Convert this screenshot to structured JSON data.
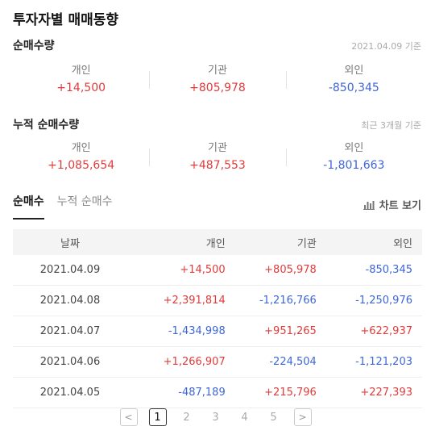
{
  "title": "투자자별 매매동향",
  "net": {
    "title": "순매수량",
    "note": "2021.04.09 기준",
    "stats": [
      {
        "label": "개인",
        "value": "+14,500"
      },
      {
        "label": "기관",
        "value": "+805,978"
      },
      {
        "label": "외인",
        "value": "-850,345"
      }
    ]
  },
  "cumulative": {
    "title": "누적 순매수량",
    "note": "최근 3개월 기준",
    "stats": [
      {
        "label": "개인",
        "value": "+1,085,654"
      },
      {
        "label": "기관",
        "value": "+487,553"
      },
      {
        "label": "외인",
        "value": "-1,801,663"
      }
    ]
  },
  "tabs": [
    {
      "label": "순매수"
    },
    {
      "label": "누적 순매수"
    }
  ],
  "chart_link": {
    "label": "차트 보기",
    "icon": "bar-chart-icon"
  },
  "table": {
    "headers": [
      "날짜",
      "개인",
      "기관",
      "외인"
    ],
    "rows": [
      [
        "2021.04.09",
        "+14,500",
        "+805,978",
        "-850,345"
      ],
      [
        "2021.04.08",
        "+2,391,814",
        "-1,216,766",
        "-1,250,976"
      ],
      [
        "2021.04.07",
        "-1,434,998",
        "+951,265",
        "+622,937"
      ],
      [
        "2021.04.06",
        "+1,266,907",
        "-224,504",
        "-1,121,203"
      ],
      [
        "2021.04.05",
        "-487,189",
        "+215,796",
        "+227,393"
      ]
    ]
  },
  "pagination": {
    "prev": "<",
    "pages": [
      "1",
      "2",
      "3",
      "4",
      "5"
    ],
    "current": "1",
    "next": ">"
  },
  "colors": {
    "positive": "#e03b3b",
    "negative": "#3e66d6"
  }
}
